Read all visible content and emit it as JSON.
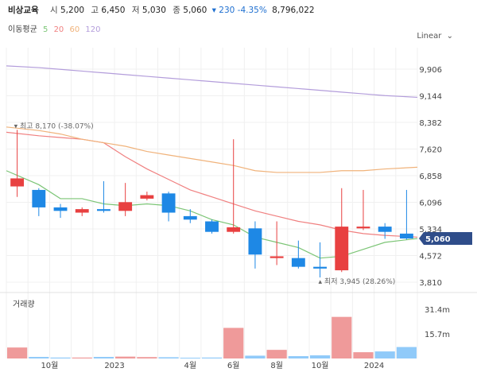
{
  "header": {
    "name": "비상교육",
    "open_label": "시",
    "open": "5,200",
    "high_label": "고",
    "high": "6,450",
    "low_label": "저",
    "low": "5,030",
    "close_label": "종",
    "close": "5,060",
    "change": "▾ 230 -4.35%",
    "volume": "8,796,022"
  },
  "moving_average": {
    "label": "이동평균",
    "periods": [
      {
        "value": "5",
        "color": "#7cc576"
      },
      {
        "value": "20",
        "color": "#f08080"
      },
      {
        "value": "60",
        "color": "#f0b27a"
      },
      {
        "value": "120",
        "color": "#b39ddb"
      }
    ]
  },
  "scale_mode": "Linear",
  "volume_panel_title": "거래량",
  "chart_data": {
    "type": "candlestick",
    "price_axis": {
      "ticks": [
        "9,906",
        "9,144",
        "8,382",
        "7,620",
        "6,858",
        "6,096",
        "5,334",
        "4,572",
        "3,810"
      ],
      "tick_values": [
        9906,
        9144,
        8382,
        7620,
        6858,
        6096,
        5334,
        4572,
        3810
      ],
      "range": [
        3810,
        10000
      ]
    },
    "volume_axis": {
      "ticks": [
        "31.4m",
        "15.7m"
      ],
      "tick_values": [
        31.4,
        15.7
      ],
      "range": [
        0,
        40
      ]
    },
    "x_ticks": [
      "10월",
      "2023",
      "4월",
      "6월",
      "8월",
      "10월",
      "2024"
    ],
    "x_tick_index": [
      2,
      5,
      8.5,
      10.5,
      12.5,
      14.5,
      17
    ],
    "current_price": "5,060",
    "current_price_value": 5060,
    "max_annotation": {
      "text": "최고 8,170 (-38.07%)",
      "value": 8170,
      "index": 0
    },
    "min_annotation": {
      "text": "최저 3,945 (28.26%)",
      "value": 3945,
      "index": 14
    },
    "candles": [
      {
        "open": 6550,
        "close": 6780,
        "high": 8170,
        "low": 6250,
        "volume": 7.0
      },
      {
        "open": 6450,
        "close": 5950,
        "high": 6500,
        "low": 5700,
        "volume": 1.0
      },
      {
        "open": 5950,
        "close": 5850,
        "high": 6050,
        "low": 5650,
        "volume": 0.6
      },
      {
        "open": 5800,
        "close": 5900,
        "high": 5950,
        "low": 5700,
        "volume": 0.6
      },
      {
        "open": 5900,
        "close": 5850,
        "high": 6700,
        "low": 5800,
        "volume": 1.0
      },
      {
        "open": 5850,
        "close": 6100,
        "high": 6650,
        "low": 5700,
        "volume": 1.2
      },
      {
        "open": 6200,
        "close": 6300,
        "high": 6400,
        "low": 6150,
        "volume": 0.9
      },
      {
        "open": 6350,
        "close": 5800,
        "high": 6400,
        "low": 5550,
        "volume": 0.8
      },
      {
        "open": 5700,
        "close": 5600,
        "high": 5900,
        "low": 5500,
        "volume": 0.5
      },
      {
        "open": 5550,
        "close": 5250,
        "high": 5600,
        "low": 5200,
        "volume": 0.6
      },
      {
        "open": 5250,
        "close": 5380,
        "high": 7900,
        "low": 5200,
        "volume": 19.5
      },
      {
        "open": 5350,
        "close": 4600,
        "high": 5550,
        "low": 4200,
        "volume": 1.8
      },
      {
        "open": 4500,
        "close": 4550,
        "high": 5550,
        "low": 4300,
        "volume": 5.5
      },
      {
        "open": 4500,
        "close": 4250,
        "high": 5000,
        "low": 4200,
        "volume": 1.5
      },
      {
        "open": 4250,
        "close": 4200,
        "high": 4950,
        "low": 3945,
        "volume": 2.0
      },
      {
        "open": 4150,
        "close": 5400,
        "high": 6500,
        "low": 4100,
        "volume": 26.5
      },
      {
        "open": 5350,
        "close": 5400,
        "high": 6450,
        "low": 5300,
        "volume": 4.0
      },
      {
        "open": 5400,
        "close": 5250,
        "high": 5500,
        "low": 5050,
        "volume": 4.5
      },
      {
        "open": 5200,
        "close": 5060,
        "high": 6450,
        "low": 5030,
        "volume": 7.3
      }
    ],
    "moving_averages": {
      "ma5": [
        7000,
        6600,
        6200,
        6200,
        6050,
        6000,
        6050,
        6000,
        5850,
        5600,
        5450,
        5100,
        4950,
        4800,
        4500,
        4550,
        4750,
        4950,
        5060
      ],
      "ma20": [
        8100,
        8000,
        7950,
        7900,
        7800,
        7400,
        7050,
        6750,
        6450,
        6250,
        6050,
        5850,
        5700,
        5550,
        5450,
        5300,
        5200,
        5150,
        5100
      ],
      "ma60": [
        8250,
        8150,
        8050,
        7900,
        7800,
        7700,
        7550,
        7450,
        7350,
        7250,
        7150,
        7000,
        6950,
        6950,
        6950,
        7000,
        7000,
        7050,
        7100
      ],
      "ma120": [
        10000,
        9950,
        9900,
        9850,
        9800,
        9750,
        9700,
        9650,
        9600,
        9550,
        9500,
        9450,
        9400,
        9350,
        9300,
        9250,
        9200,
        9150,
        9100
      ]
    },
    "colors": {
      "up": "#e84040",
      "down": "#1e88e5",
      "grid": "#f0f0f0"
    }
  }
}
